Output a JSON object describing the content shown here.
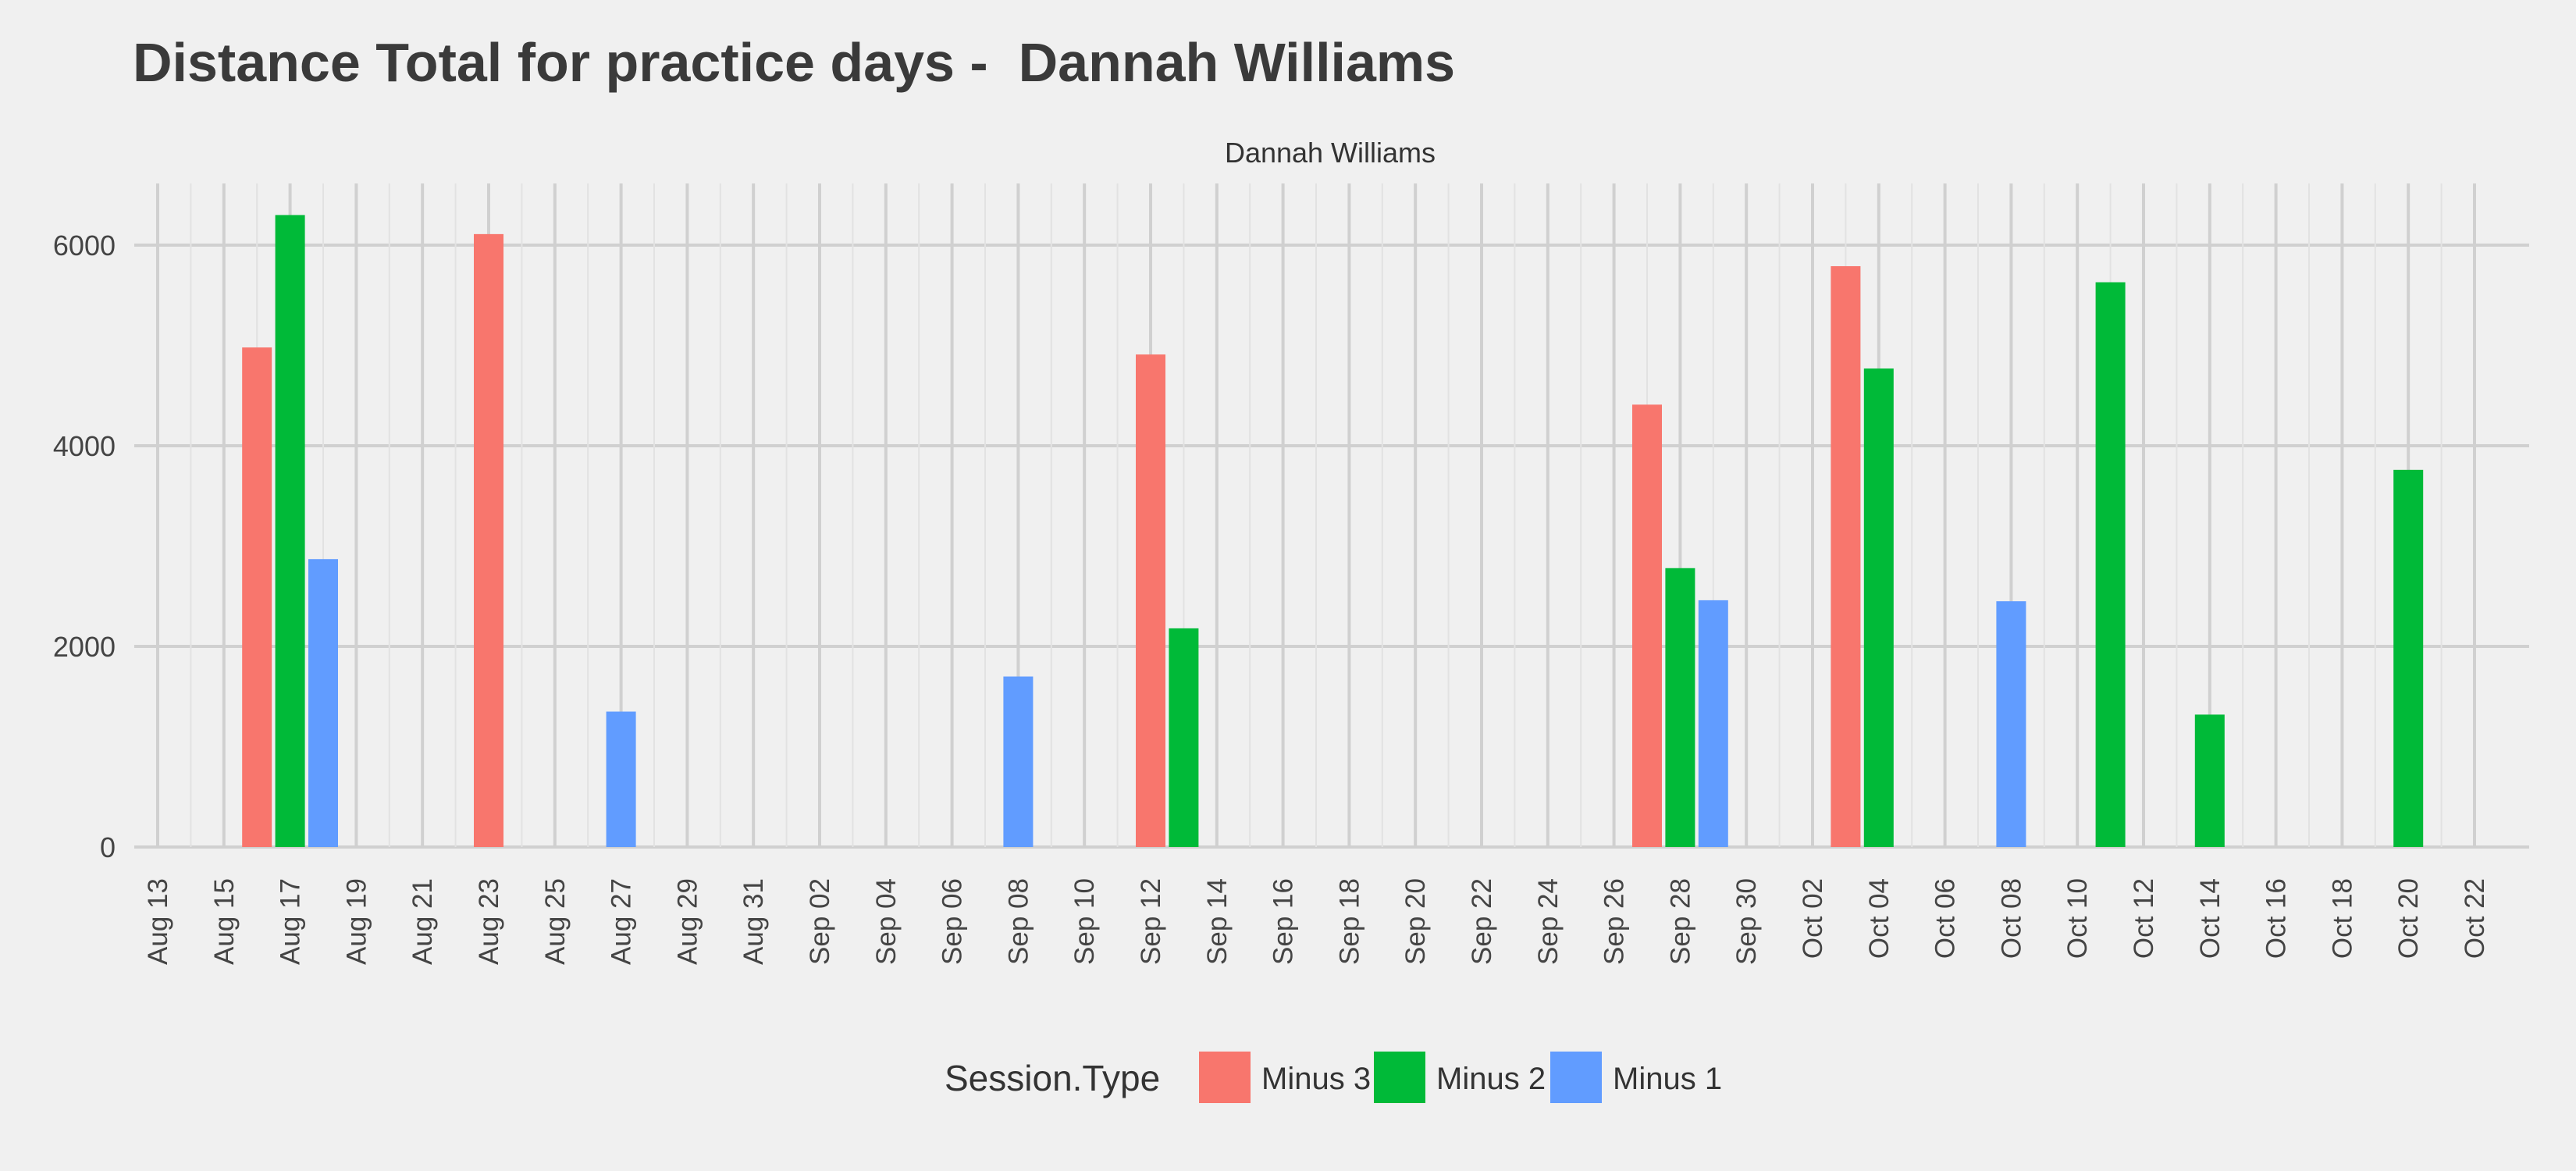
{
  "chart_data": {
    "type": "bar",
    "title": "Distance Total for practice days -  Dannah Williams",
    "facet_label": "Dannah Williams",
    "xlabel": "",
    "ylabel": "",
    "ylim": [
      0,
      6500
    ],
    "y_ticks": [
      0,
      2000,
      4000,
      6000
    ],
    "x_ticks": [
      "Aug 13",
      "Aug 15",
      "Aug 17",
      "Aug 19",
      "Aug 21",
      "Aug 23",
      "Aug 25",
      "Aug 27",
      "Aug 29",
      "Aug 31",
      "Sep 02",
      "Sep 04",
      "Sep 06",
      "Sep 08",
      "Sep 10",
      "Sep 12",
      "Sep 14",
      "Sep 16",
      "Sep 18",
      "Sep 20",
      "Sep 22",
      "Sep 24",
      "Sep 26",
      "Sep 28",
      "Sep 30",
      "Oct 02",
      "Oct 04",
      "Oct 06",
      "Oct 08",
      "Oct 10",
      "Oct 12",
      "Oct 14",
      "Oct 16",
      "Oct 18",
      "Oct 20",
      "Oct 22"
    ],
    "grid": true,
    "legend": {
      "title": "Session.Type",
      "position": "bottom",
      "entries": [
        {
          "name": "Minus 3",
          "color": "#f8766d"
        },
        {
          "name": "Minus 2",
          "color": "#00ba38"
        },
        {
          "name": "Minus 1",
          "color": "#619cff"
        }
      ]
    },
    "bars": [
      {
        "date": "Aug 16",
        "session": "Minus 3",
        "value": 4980
      },
      {
        "date": "Aug 17",
        "session": "Minus 2",
        "value": 6300
      },
      {
        "date": "Aug 18",
        "session": "Minus 1",
        "value": 2870
      },
      {
        "date": "Aug 23",
        "session": "Minus 3",
        "value": 6110
      },
      {
        "date": "Aug 27",
        "session": "Minus 1",
        "value": 1350
      },
      {
        "date": "Sep 08",
        "session": "Minus 1",
        "value": 1700
      },
      {
        "date": "Sep 12",
        "session": "Minus 3",
        "value": 4910
      },
      {
        "date": "Sep 13",
        "session": "Minus 2",
        "value": 2180
      },
      {
        "date": "Sep 27",
        "session": "Minus 3",
        "value": 4410
      },
      {
        "date": "Sep 28",
        "session": "Minus 2",
        "value": 2780
      },
      {
        "date": "Sep 29",
        "session": "Minus 1",
        "value": 2460
      },
      {
        "date": "Oct 03",
        "session": "Minus 3",
        "value": 5790
      },
      {
        "date": "Oct 04",
        "session": "Minus 2",
        "value": 4770
      },
      {
        "date": "Oct 08",
        "session": "Minus 1",
        "value": 2450
      },
      {
        "date": "Oct 11",
        "session": "Minus 2",
        "value": 5630
      },
      {
        "date": "Oct 14",
        "session": "Minus 2",
        "value": 1320
      },
      {
        "date": "Oct 20",
        "session": "Minus 2",
        "value": 3760
      }
    ]
  }
}
